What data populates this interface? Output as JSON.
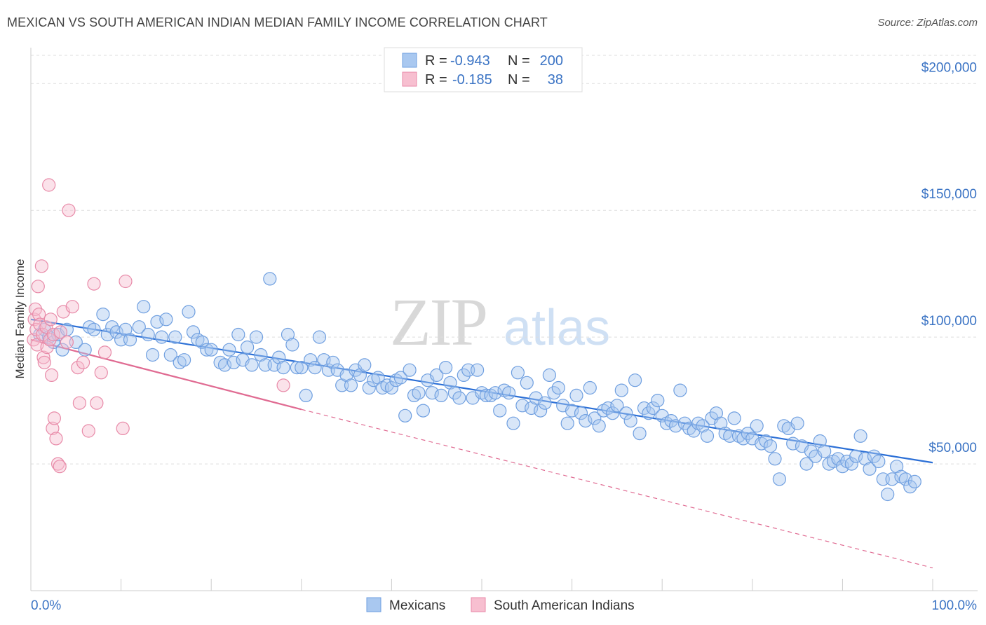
{
  "header": {
    "title": "MEXICAN VS SOUTH AMERICAN INDIAN MEDIAN FAMILY INCOME CORRELATION CHART",
    "source": "Source: ZipAtlas.com"
  },
  "watermark": {
    "zip": "ZIP",
    "atlas": "atlas"
  },
  "stats_legend": [
    {
      "r_label": "R =",
      "r_value": "-0.943",
      "n_label": "N =",
      "n_value": "200",
      "color": "#a9c8f0",
      "stroke": "#6f9fe0"
    },
    {
      "r_label": "R =",
      "r_value": "-0.185",
      "n_label": "N =",
      "n_value": "38",
      "color": "#f7bfd0",
      "stroke": "#e88aa8"
    }
  ],
  "chart_data": {
    "type": "scatter",
    "xlabel": "",
    "ylabel": "Median Family Income",
    "xlim": [
      0,
      100
    ],
    "ylim": [
      0,
      215000
    ],
    "x_tick_labels": [
      "0.0%",
      "100.0%"
    ],
    "y_ticks": [
      50000,
      100000,
      150000,
      200000
    ],
    "y_tick_labels": [
      "$50,000",
      "$100,000",
      "$150,000",
      "$200,000"
    ],
    "grid": true,
    "series": [
      {
        "name": "Mexicans",
        "color": "#6f9fe0",
        "fill": "#a9c8f0",
        "trend": {
          "x": [
            0,
            100
          ],
          "y": [
            107000,
            50500
          ],
          "style": "solid",
          "color": "#2b6fd6"
        },
        "points": [
          [
            1,
            101000
          ],
          [
            1.5,
            103000
          ],
          [
            2,
            100000
          ],
          [
            2.5,
            98000
          ],
          [
            3,
            101000
          ],
          [
            3.5,
            95000
          ],
          [
            4,
            103000
          ],
          [
            5,
            98000
          ],
          [
            6,
            95000
          ],
          [
            6.5,
            104000
          ],
          [
            7,
            103000
          ],
          [
            8,
            109000
          ],
          [
            8.5,
            101000
          ],
          [
            9,
            104000
          ],
          [
            9.5,
            102000
          ],
          [
            10,
            99000
          ],
          [
            10.5,
            103000
          ],
          [
            11,
            99000
          ],
          [
            12,
            104000
          ],
          [
            12.5,
            112000
          ],
          [
            13,
            101000
          ],
          [
            13.5,
            93000
          ],
          [
            14,
            106000
          ],
          [
            14.5,
            100000
          ],
          [
            15,
            107000
          ],
          [
            15.5,
            93000
          ],
          [
            16,
            100000
          ],
          [
            16.5,
            90000
          ],
          [
            17,
            91000
          ],
          [
            17.5,
            110000
          ],
          [
            18,
            102000
          ],
          [
            18.5,
            99000
          ],
          [
            19,
            98000
          ],
          [
            19.5,
            95000
          ],
          [
            20,
            95000
          ],
          [
            21,
            90000
          ],
          [
            21.5,
            89000
          ],
          [
            22,
            95000
          ],
          [
            22.5,
            90000
          ],
          [
            23,
            101000
          ],
          [
            23.5,
            91000
          ],
          [
            24,
            96000
          ],
          [
            24.5,
            89000
          ],
          [
            25,
            100000
          ],
          [
            25.5,
            93000
          ],
          [
            26,
            89000
          ],
          [
            26.5,
            123000
          ],
          [
            27,
            89000
          ],
          [
            27.5,
            92000
          ],
          [
            28,
            88000
          ],
          [
            28.5,
            101000
          ],
          [
            29,
            97000
          ],
          [
            29.5,
            88000
          ],
          [
            30,
            88000
          ],
          [
            30.5,
            77000
          ],
          [
            31,
            91000
          ],
          [
            31.5,
            88000
          ],
          [
            32,
            100000
          ],
          [
            32.5,
            91000
          ],
          [
            33,
            87000
          ],
          [
            33.5,
            90000
          ],
          [
            34,
            87000
          ],
          [
            34.5,
            81000
          ],
          [
            35,
            85000
          ],
          [
            35.5,
            81000
          ],
          [
            36,
            87000
          ],
          [
            36.5,
            85000
          ],
          [
            37,
            89000
          ],
          [
            37.5,
            80000
          ],
          [
            38,
            83000
          ],
          [
            38.5,
            84000
          ],
          [
            39,
            80000
          ],
          [
            39.5,
            81000
          ],
          [
            40,
            80000
          ],
          [
            40.5,
            83000
          ],
          [
            41,
            84000
          ],
          [
            41.5,
            69000
          ],
          [
            42,
            87000
          ],
          [
            42.5,
            77000
          ],
          [
            43,
            78000
          ],
          [
            43.5,
            71000
          ],
          [
            44,
            83000
          ],
          [
            44.5,
            78000
          ],
          [
            45,
            85000
          ],
          [
            45.5,
            77000
          ],
          [
            46,
            88000
          ],
          [
            46.5,
            82000
          ],
          [
            47,
            78000
          ],
          [
            47.5,
            76000
          ],
          [
            48,
            85000
          ],
          [
            48.5,
            87000
          ],
          [
            49,
            76000
          ],
          [
            49.5,
            87000
          ],
          [
            50,
            78000
          ],
          [
            50.5,
            77000
          ],
          [
            51,
            77000
          ],
          [
            51.5,
            78000
          ],
          [
            52,
            71000
          ],
          [
            52.5,
            79000
          ],
          [
            53,
            78000
          ],
          [
            53.5,
            66000
          ],
          [
            54,
            86000
          ],
          [
            54.5,
            73000
          ],
          [
            55,
            82000
          ],
          [
            55.5,
            72000
          ],
          [
            56,
            76000
          ],
          [
            56.5,
            71000
          ],
          [
            57,
            74000
          ],
          [
            57.5,
            85000
          ],
          [
            58,
            78000
          ],
          [
            58.5,
            80000
          ],
          [
            59,
            73000
          ],
          [
            59.5,
            66000
          ],
          [
            60,
            71000
          ],
          [
            60.5,
            77000
          ],
          [
            61,
            70000
          ],
          [
            61.5,
            67000
          ],
          [
            62,
            80000
          ],
          [
            62.5,
            68000
          ],
          [
            63,
            65000
          ],
          [
            63.5,
            71000
          ],
          [
            64,
            72000
          ],
          [
            64.5,
            70000
          ],
          [
            65,
            73000
          ],
          [
            65.5,
            79000
          ],
          [
            66,
            70000
          ],
          [
            66.5,
            67000
          ],
          [
            67,
            83000
          ],
          [
            67.5,
            62000
          ],
          [
            68,
            72000
          ],
          [
            68.5,
            70000
          ],
          [
            69,
            72000
          ],
          [
            69.5,
            75000
          ],
          [
            70,
            69000
          ],
          [
            70.5,
            66000
          ],
          [
            71,
            67000
          ],
          [
            71.5,
            65000
          ],
          [
            72,
            79000
          ],
          [
            72.5,
            66000
          ],
          [
            73,
            64000
          ],
          [
            73.5,
            63000
          ],
          [
            74,
            66000
          ],
          [
            74.5,
            65000
          ],
          [
            75,
            61000
          ],
          [
            75.5,
            68000
          ],
          [
            76,
            70000
          ],
          [
            76.5,
            66000
          ],
          [
            77,
            62000
          ],
          [
            77.5,
            61000
          ],
          [
            78,
            68000
          ],
          [
            78.5,
            61000
          ],
          [
            79,
            60000
          ],
          [
            79.5,
            62000
          ],
          [
            80,
            60000
          ],
          [
            80.5,
            65000
          ],
          [
            81,
            58000
          ],
          [
            81.5,
            59000
          ],
          [
            82,
            57000
          ],
          [
            82.5,
            52000
          ],
          [
            83,
            44000
          ],
          [
            83.5,
            65000
          ],
          [
            84,
            64000
          ],
          [
            84.5,
            58000
          ],
          [
            85,
            66000
          ],
          [
            85.5,
            57000
          ],
          [
            86,
            50000
          ],
          [
            86.5,
            55000
          ],
          [
            87,
            53000
          ],
          [
            87.5,
            59000
          ],
          [
            88,
            55000
          ],
          [
            88.5,
            50000
          ],
          [
            89,
            51000
          ],
          [
            89.5,
            52000
          ],
          [
            90,
            49000
          ],
          [
            90.5,
            51000
          ],
          [
            91,
            50000
          ],
          [
            91.5,
            53000
          ],
          [
            92,
            61000
          ],
          [
            92.5,
            52000
          ],
          [
            93,
            48000
          ],
          [
            93.5,
            53000
          ],
          [
            94,
            51000
          ],
          [
            94.5,
            44000
          ],
          [
            95,
            38000
          ],
          [
            95.5,
            44000
          ],
          [
            96,
            49000
          ],
          [
            96.5,
            45000
          ],
          [
            97,
            44000
          ],
          [
            97.5,
            41000
          ],
          [
            98,
            43000
          ]
        ]
      },
      {
        "name": "South American Indians",
        "color": "#e88aa8",
        "fill": "#f7bfd0",
        "trend": {
          "x": [
            0,
            30
          ],
          "y": [
            99000,
            71500
          ],
          "style": "solid",
          "color": "#e06b92",
          "extend": {
            "x": [
              30,
              100
            ],
            "y": [
              71500,
              9000
            ],
            "style": "dashed"
          }
        },
        "points": [
          [
            0.3,
            99000
          ],
          [
            0.4,
            107000
          ],
          [
            0.5,
            111000
          ],
          [
            0.6,
            103000
          ],
          [
            0.7,
            97000
          ],
          [
            0.8,
            120000
          ],
          [
            0.9,
            109000
          ],
          [
            1,
            105000
          ],
          [
            1.2,
            128000
          ],
          [
            1.3,
            101000
          ],
          [
            1.4,
            92000
          ],
          [
            1.5,
            90000
          ],
          [
            1.7,
            104000
          ],
          [
            1.8,
            96000
          ],
          [
            2,
            160000
          ],
          [
            2.1,
            99000
          ],
          [
            2.2,
            107000
          ],
          [
            2.3,
            85000
          ],
          [
            2.4,
            64000
          ],
          [
            2.5,
            101000
          ],
          [
            2.6,
            68000
          ],
          [
            2.8,
            60000
          ],
          [
            3,
            50000
          ],
          [
            3.2,
            49000
          ],
          [
            3.3,
            102000
          ],
          [
            3.6,
            110000
          ],
          [
            4,
            98000
          ],
          [
            4.2,
            150000
          ],
          [
            4.6,
            112000
          ],
          [
            5.2,
            88000
          ],
          [
            5.4,
            74000
          ],
          [
            5.8,
            90000
          ],
          [
            6.4,
            63000
          ],
          [
            7,
            121000
          ],
          [
            7.3,
            74000
          ],
          [
            7.8,
            86000
          ],
          [
            8.2,
            94000
          ],
          [
            10.5,
            122000
          ],
          [
            10.2,
            64000
          ],
          [
            28,
            81000
          ]
        ]
      }
    ]
  }
}
